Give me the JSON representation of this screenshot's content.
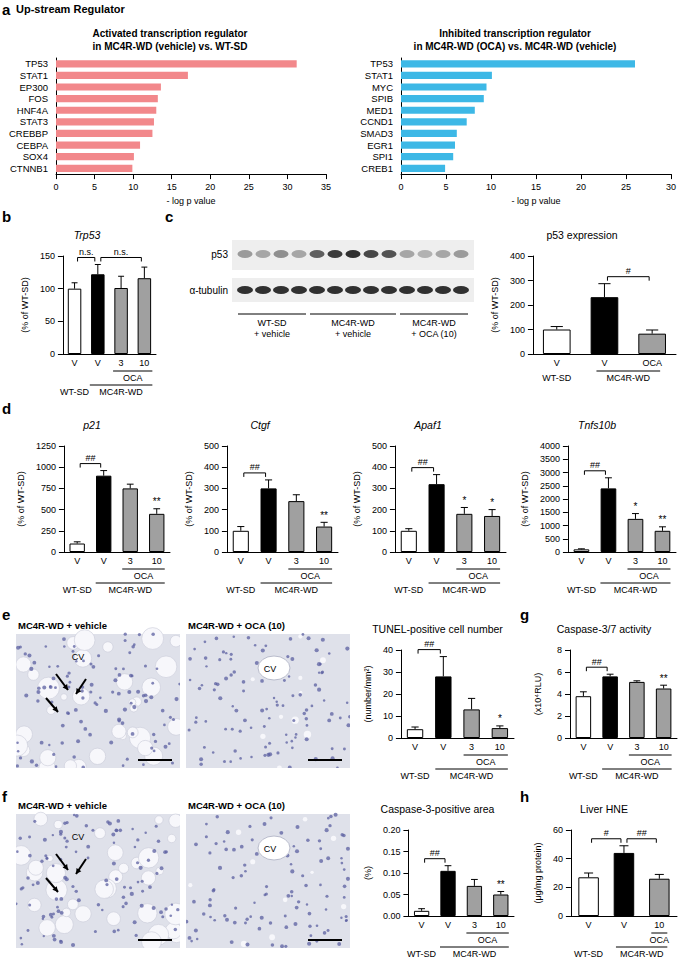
{
  "header": "Up-stream Regulator",
  "panel_letters": [
    "a",
    "b",
    "c",
    "d",
    "e",
    "g",
    "f",
    "h"
  ],
  "blot": {
    "bands": [
      "p53",
      "α-tubulin"
    ],
    "groups": [
      "WT-SD\n+ vehicle",
      "MC4R-WD\n+ vehicle",
      "MC4R-WD\n+ OCA (10)"
    ]
  },
  "images": [
    {
      "title": "MC4R-WD + vehicle",
      "label": "CV"
    },
    {
      "title": "MC4R-WD + OCA (10)",
      "label": "CV"
    },
    {
      "title": "MC4R-WD + vehicle",
      "label": "CV"
    },
    {
      "title": "MC4R-WD + OCA (10)",
      "label": "CV"
    }
  ],
  "chart_data": [
    {
      "type": "bar",
      "orientation": "horizontal",
      "title": "Activated transcription regulator\nin MC4R-WD (vehicle) vs. WT-SD",
      "categories": [
        "TP53",
        "STAT1",
        "EP300",
        "FOS",
        "HNF4A",
        "STAT3",
        "CREBBP",
        "CEBPA",
        "SOX4",
        "CTNNB1"
      ],
      "values": [
        31.2,
        17.1,
        13.6,
        13.2,
        13.0,
        12.7,
        12.5,
        10.9,
        10.1,
        9.9
      ],
      "color": "#f2888b",
      "xlabel": "- log p value",
      "xlim": [
        0,
        35
      ],
      "xticks": [
        0,
        5,
        10,
        15,
        20,
        25,
        30,
        35
      ],
      "grid": false
    },
    {
      "type": "bar",
      "orientation": "horizontal",
      "title": "Inhibited transcription regulator\nin MC4R-WD (OCA) vs. MC4R-WD (vehicle)",
      "categories": [
        "TP53",
        "STAT1",
        "MYC",
        "SPIB",
        "MED1",
        "CCND1",
        "SMAD3",
        "EGR1",
        "SPI1",
        "CREB1"
      ],
      "values": [
        26.0,
        10.1,
        9.5,
        9.2,
        8.2,
        7.3,
        6.2,
        6.0,
        5.8,
        4.9
      ],
      "color": "#3db8e6",
      "xlabel": "- log p value",
      "xlim": [
        0,
        30
      ],
      "xticks": [
        0,
        5,
        10,
        15,
        20,
        25,
        30
      ],
      "grid": false
    },
    {
      "type": "bar",
      "title": "Trp53",
      "categories": [
        "V",
        "V",
        "3",
        "10"
      ],
      "category_groups": [
        [
          null,
          null,
          "OCA",
          "OCA"
        ],
        [
          "WT-SD",
          "MC4R-WD",
          "MC4R-WD",
          "MC4R-WD"
        ]
      ],
      "values": [
        100,
        122,
        101,
        116
      ],
      "errors": [
        9,
        15,
        18,
        17
      ],
      "colors": [
        "#ffffff",
        "#000000",
        "#a0a0a0",
        "#a0a0a0"
      ],
      "ylabel": "(% of WT-SD)",
      "ylim": [
        0,
        150
      ],
      "yticks": [
        0,
        50,
        100,
        150
      ],
      "grid": false,
      "marks": [
        null,
        null,
        null,
        null
      ],
      "brackets": [
        {
          "from": 0,
          "to": 1,
          "label": "n.s."
        },
        {
          "from": 1,
          "to": 3,
          "label": "n.s."
        }
      ]
    },
    {
      "type": "bar",
      "title": "p53 expression",
      "categories": [
        "V",
        "V",
        "OCA"
      ],
      "category_groups": [
        [
          "WT-SD",
          "MC4R-WD",
          "MC4R-WD"
        ]
      ],
      "values": [
        100,
        232,
        83
      ],
      "errors": [
        12,
        55,
        15
      ],
      "colors": [
        "#ffffff",
        "#000000",
        "#a0a0a0"
      ],
      "ylabel": "(% of WT-SD)",
      "ylim": [
        0,
        400
      ],
      "yticks": [
        0,
        100,
        200,
        300,
        400
      ],
      "grid": false,
      "marks": [
        null,
        null,
        null
      ],
      "brackets": [
        {
          "from": 1,
          "to": 2,
          "label": "#"
        }
      ]
    },
    {
      "type": "bar",
      "title": "p21",
      "categories": [
        "V",
        "V",
        "3",
        "10"
      ],
      "category_groups": [
        [
          null,
          null,
          "OCA",
          "OCA"
        ],
        [
          "WT-SD",
          "MC4R-WD",
          "MC4R-WD",
          "MC4R-WD"
        ]
      ],
      "values": [
        100,
        900,
        750,
        450
      ],
      "errors": [
        20,
        60,
        50,
        60
      ],
      "colors": [
        "#ffffff",
        "#000000",
        "#a0a0a0",
        "#a0a0a0"
      ],
      "ylabel": "(% of WT-SD)",
      "ylim": [
        0,
        1250
      ],
      "yticks": [
        0,
        250,
        500,
        750,
        1000,
        1250
      ],
      "grid": false,
      "marks": [
        null,
        null,
        null,
        "**"
      ],
      "brackets": [
        {
          "from": 0,
          "to": 1,
          "label": "##"
        }
      ]
    },
    {
      "type": "bar",
      "title": "Ctgf",
      "categories": [
        "V",
        "V",
        "3",
        "10"
      ],
      "category_groups": [
        [
          null,
          null,
          "OCA",
          "OCA"
        ],
        [
          "WT-SD",
          "MC4R-WD",
          "MC4R-WD",
          "MC4R-WD"
        ]
      ],
      "values": [
        100,
        300,
        240,
        120
      ],
      "errors": [
        20,
        40,
        30,
        20
      ],
      "colors": [
        "#ffffff",
        "#000000",
        "#a0a0a0",
        "#a0a0a0"
      ],
      "ylabel": "(% of WT-SD)",
      "ylim": [
        0,
        500
      ],
      "yticks": [
        0,
        100,
        200,
        300,
        400,
        500
      ],
      "grid": false,
      "marks": [
        null,
        null,
        null,
        "**"
      ],
      "brackets": [
        {
          "from": 0,
          "to": 1,
          "label": "##"
        }
      ]
    },
    {
      "type": "bar",
      "title": "Apaf1",
      "categories": [
        "V",
        "V",
        "3",
        "10"
      ],
      "category_groups": [
        [
          null,
          null,
          "OCA",
          "OCA"
        ],
        [
          "WT-SD",
          "MC4R-WD",
          "MC4R-WD",
          "MC4R-WD"
        ]
      ],
      "values": [
        100,
        320,
        180,
        170
      ],
      "errors": [
        10,
        45,
        30,
        30
      ],
      "colors": [
        "#ffffff",
        "#000000",
        "#a0a0a0",
        "#a0a0a0"
      ],
      "ylabel": "(% of WT-SD)",
      "ylim": [
        0,
        500
      ],
      "yticks": [
        0,
        100,
        200,
        300,
        400,
        500
      ],
      "grid": false,
      "marks": [
        null,
        null,
        "*",
        "*"
      ],
      "brackets": [
        {
          "from": 0,
          "to": 1,
          "label": "##"
        }
      ]
    },
    {
      "type": "bar",
      "title": "Tnfs10b",
      "categories": [
        "V",
        "V",
        "3",
        "10"
      ],
      "category_groups": [
        [
          null,
          null,
          "OCA",
          "OCA"
        ],
        [
          "WT-SD",
          "MC4R-WD",
          "MC4R-WD",
          "MC4R-WD"
        ]
      ],
      "values": [
        100,
        2400,
        1250,
        800
      ],
      "errors": [
        20,
        400,
        200,
        150
      ],
      "colors": [
        "#ffffff",
        "#000000",
        "#a0a0a0",
        "#a0a0a0"
      ],
      "ylabel": "(% of WT-SD)",
      "ylim": [
        0,
        4000
      ],
      "yticks": [
        0,
        500,
        1000,
        1500,
        2000,
        2500,
        3000,
        3500,
        4000
      ],
      "grid": false,
      "marks": [
        null,
        null,
        "*",
        "**"
      ],
      "brackets": [
        {
          "from": 0,
          "to": 1,
          "label": "##"
        }
      ]
    },
    {
      "type": "bar",
      "title": "TUNEL-positive cell number",
      "categories": [
        "V",
        "V",
        "3",
        "10"
      ],
      "category_groups": [
        [
          null,
          null,
          "OCA",
          "OCA"
        ],
        [
          "WT-SD",
          "MC4R-WD",
          "MC4R-WD",
          "MC4R-WD"
        ]
      ],
      "values": [
        4,
        28,
        13,
        4.5
      ],
      "errors": [
        1,
        9,
        5,
        1
      ],
      "colors": [
        "#ffffff",
        "#000000",
        "#a0a0a0",
        "#a0a0a0"
      ],
      "ylabel": "(number/mm²)",
      "ylim": [
        0,
        40
      ],
      "yticks": [
        0,
        10,
        20,
        30,
        40
      ],
      "grid": false,
      "marks": [
        null,
        null,
        null,
        "*"
      ],
      "brackets": [
        {
          "from": 0,
          "to": 1,
          "label": "##"
        }
      ]
    },
    {
      "type": "bar",
      "title": "Caspase-3/7 activity",
      "categories": [
        "V",
        "V",
        "3",
        "10"
      ],
      "category_groups": [
        [
          null,
          null,
          "OCA",
          "OCA"
        ],
        [
          "WT-SD",
          "MC4R-WD",
          "MC4R-WD",
          "MC4R-WD"
        ]
      ],
      "values": [
        3.8,
        5.6,
        5.1,
        4.5
      ],
      "errors": [
        0.4,
        0.2,
        0.1,
        0.3
      ],
      "colors": [
        "#ffffff",
        "#000000",
        "#a0a0a0",
        "#a0a0a0"
      ],
      "ylabel": "(x10⁴RLU)",
      "ylim": [
        0,
        8
      ],
      "yticks": [
        0,
        2,
        4,
        6,
        8
      ],
      "grid": false,
      "marks": [
        null,
        null,
        null,
        "**"
      ],
      "brackets": [
        {
          "from": 0,
          "to": 1,
          "label": "##"
        }
      ]
    },
    {
      "type": "bar",
      "title": "Caspase-3-positive area",
      "categories": [
        "V",
        "V",
        "3",
        "10"
      ],
      "category_groups": [
        [
          null,
          null,
          "OCA",
          "OCA"
        ],
        [
          "WT-SD",
          "MC4R-WD",
          "MC4R-WD",
          "MC4R-WD"
        ]
      ],
      "values": [
        0.012,
        0.105,
        0.07,
        0.05
      ],
      "errors": [
        0.005,
        0.012,
        0.015,
        0.007
      ],
      "colors": [
        "#ffffff",
        "#000000",
        "#a0a0a0",
        "#a0a0a0"
      ],
      "ylabel": "(%)",
      "ylim": [
        0,
        0.2
      ],
      "yticks": [
        {
          "value": 0,
          "label": "0.00"
        },
        0.05,
        {
          "value": 0.1,
          "label": "0.10"
        },
        0.15,
        {
          "value": 0.2,
          "label": "0.20"
        }
      ],
      "grid": false,
      "marks": [
        null,
        null,
        null,
        "**"
      ],
      "brackets": [
        {
          "from": 0,
          "to": 1,
          "label": "##"
        }
      ]
    },
    {
      "type": "bar",
      "title": "Liver HNE",
      "categories": [
        "V",
        "V",
        "10"
      ],
      "category_groups": [
        [
          null,
          null,
          "OCA"
        ],
        [
          "WT-SD",
          "MC4R-WD",
          "MC4R-WD"
        ]
      ],
      "values": [
        27,
        44,
        26
      ],
      "errors": [
        3,
        5,
        3
      ],
      "colors": [
        "#ffffff",
        "#000000",
        "#a0a0a0"
      ],
      "ylabel": "(μg/mg protein)",
      "ylim": [
        0,
        60
      ],
      "yticks": [
        0,
        20,
        40,
        60
      ],
      "grid": false,
      "marks": [
        null,
        null,
        null
      ],
      "brackets": [
        {
          "from": 0,
          "to": 1,
          "label": "#"
        },
        {
          "from": 1,
          "to": 2,
          "label": "##"
        }
      ]
    }
  ]
}
